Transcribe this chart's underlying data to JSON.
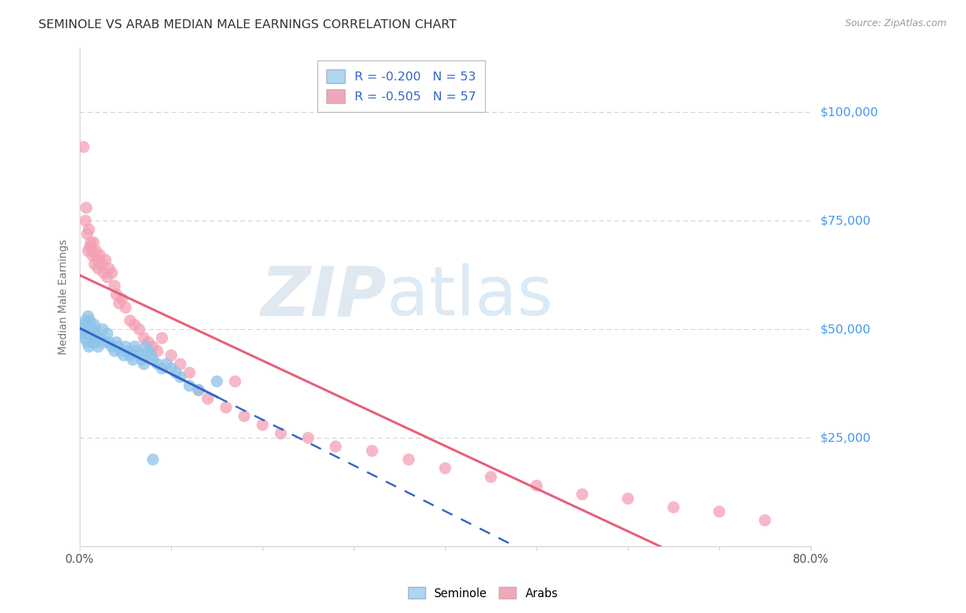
{
  "title": "SEMINOLE VS ARAB MEDIAN MALE EARNINGS CORRELATION CHART",
  "source": "Source: ZipAtlas.com",
  "ylabel": "Median Male Earnings",
  "watermark_zip": "ZIP",
  "watermark_atlas": "atlas",
  "xlim": [
    0.0,
    0.8
  ],
  "ylim": [
    0,
    115000
  ],
  "yticks": [
    0,
    25000,
    50000,
    75000,
    100000
  ],
  "ytick_labels": [
    "",
    "$25,000",
    "$50,000",
    "$75,000",
    "$100,000"
  ],
  "seminole_R": -0.2,
  "seminole_N": 53,
  "arab_R": -0.505,
  "arab_N": 57,
  "seminole_color": "#8EC4E8",
  "arab_color": "#F4A0B5",
  "seminole_line_color": "#3366CC",
  "arab_line_color": "#E8607A",
  "background_color": "#ffffff",
  "grid_color": "#cccccc",
  "title_color": "#333333",
  "axis_label_color": "#777777",
  "right_label_color": "#4499EE",
  "legend_fill_seminole": "#AED6F1",
  "legend_fill_arab": "#F1A7BA",
  "seminole_x": [
    0.002,
    0.003,
    0.004,
    0.005,
    0.006,
    0.007,
    0.008,
    0.009,
    0.01,
    0.011,
    0.012,
    0.013,
    0.014,
    0.015,
    0.016,
    0.017,
    0.018,
    0.019,
    0.02,
    0.022,
    0.025,
    0.028,
    0.03,
    0.032,
    0.035,
    0.038,
    0.04,
    0.042,
    0.045,
    0.048,
    0.05,
    0.052,
    0.055,
    0.058,
    0.06,
    0.062,
    0.065,
    0.068,
    0.07,
    0.072,
    0.075,
    0.078,
    0.08,
    0.085,
    0.09,
    0.095,
    0.1,
    0.105,
    0.11,
    0.12,
    0.13,
    0.15,
    0.08
  ],
  "seminole_y": [
    49000,
    50000,
    51000,
    48000,
    52000,
    49000,
    47000,
    53000,
    46000,
    52000,
    50000,
    48000,
    47000,
    49000,
    51000,
    50000,
    48000,
    47000,
    46000,
    48000,
    50000,
    47000,
    49000,
    47000,
    46000,
    45000,
    47000,
    46000,
    45000,
    44000,
    46000,
    45000,
    44000,
    43000,
    46000,
    45000,
    44000,
    43000,
    42000,
    46000,
    45000,
    44000,
    43000,
    42000,
    41000,
    42000,
    41000,
    40000,
    39000,
    37000,
    36000,
    38000,
    20000
  ],
  "arab_x": [
    0.004,
    0.006,
    0.007,
    0.008,
    0.009,
    0.01,
    0.011,
    0.012,
    0.013,
    0.014,
    0.015,
    0.016,
    0.018,
    0.019,
    0.02,
    0.022,
    0.024,
    0.026,
    0.028,
    0.03,
    0.032,
    0.035,
    0.038,
    0.04,
    0.043,
    0.046,
    0.05,
    0.055,
    0.06,
    0.065,
    0.07,
    0.075,
    0.08,
    0.085,
    0.09,
    0.1,
    0.11,
    0.12,
    0.13,
    0.14,
    0.16,
    0.18,
    0.2,
    0.22,
    0.25,
    0.28,
    0.32,
    0.36,
    0.4,
    0.45,
    0.5,
    0.55,
    0.6,
    0.65,
    0.7,
    0.75,
    0.17
  ],
  "arab_y": [
    92000,
    75000,
    78000,
    72000,
    68000,
    73000,
    69000,
    70000,
    68000,
    67000,
    70000,
    65000,
    68000,
    66000,
    64000,
    67000,
    65000,
    63000,
    66000,
    62000,
    64000,
    63000,
    60000,
    58000,
    56000,
    57000,
    55000,
    52000,
    51000,
    50000,
    48000,
    47000,
    46000,
    45000,
    48000,
    44000,
    42000,
    40000,
    36000,
    34000,
    32000,
    30000,
    28000,
    26000,
    25000,
    23000,
    22000,
    20000,
    18000,
    16000,
    14000,
    12000,
    11000,
    9000,
    8000,
    6000,
    38000
  ]
}
